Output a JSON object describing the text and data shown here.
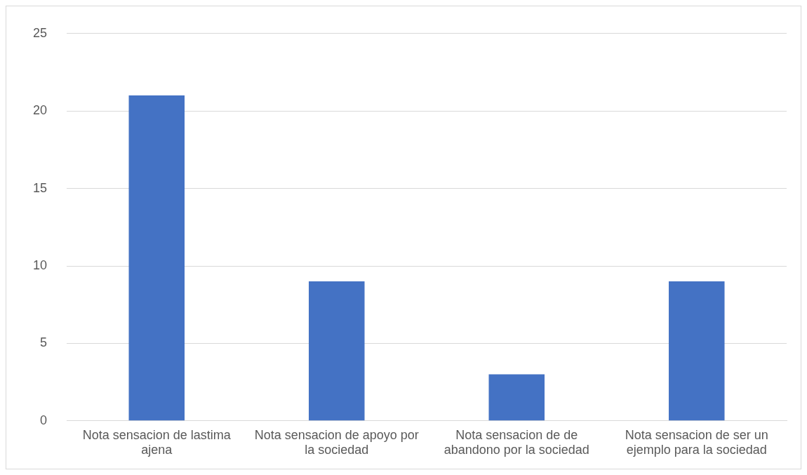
{
  "chart_data": {
    "type": "bar",
    "categories": [
      "Nota sensacion de lastima ajena",
      "Nota sensacion de apoyo por la sociedad",
      "Nota sensacion de de abandono por la sociedad",
      "Nota sensacion de ser un ejemplo para la sociedad"
    ],
    "values": [
      21,
      9,
      3,
      9
    ],
    "color": "#4472c4",
    "ylim": [
      0,
      25
    ],
    "yticks": [
      0,
      5,
      10,
      15,
      20,
      25
    ],
    "grid": "y",
    "legend": false
  }
}
